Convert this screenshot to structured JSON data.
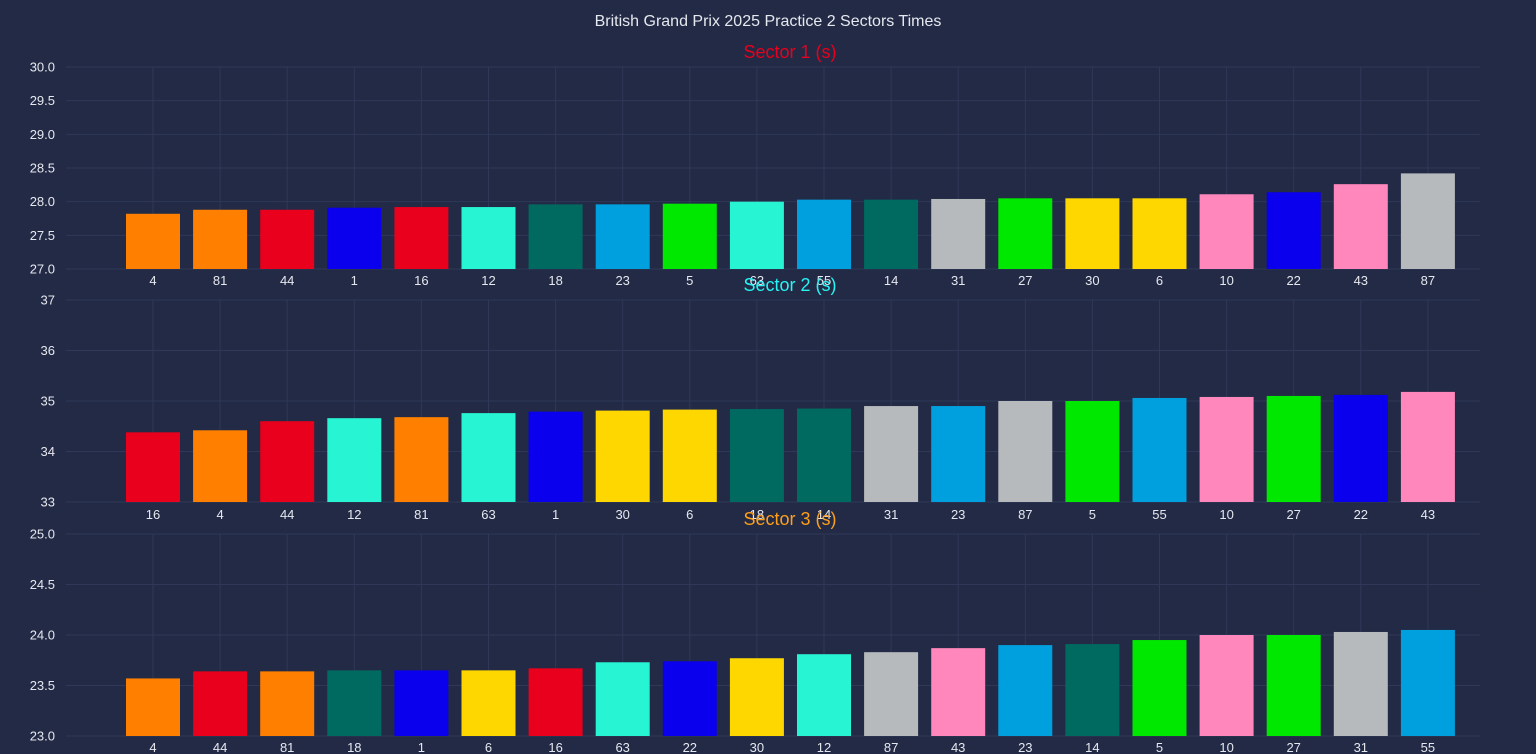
{
  "title": "British Grand Prix 2025 Practice 2 Sectors Times",
  "chart_data": [
    {
      "type": "bar",
      "title": "Sector 1 (s)",
      "title_color": "#e8001c",
      "ylim": [
        27.0,
        30.0
      ],
      "yticks": [
        "27.0",
        "27.5",
        "28.0",
        "28.5",
        "29.0",
        "29.5",
        "30.0"
      ],
      "categories": [
        "4",
        "81",
        "44",
        "1",
        "16",
        "12",
        "18",
        "23",
        "5",
        "63",
        "55",
        "14",
        "31",
        "27",
        "30",
        "6",
        "10",
        "22",
        "43",
        "87"
      ],
      "values": [
        27.82,
        27.88,
        27.88,
        27.91,
        27.92,
        27.92,
        27.96,
        27.96,
        27.97,
        28.0,
        28.03,
        28.03,
        28.04,
        28.05,
        28.05,
        28.05,
        28.11,
        28.14,
        28.26,
        28.42
      ],
      "colors": [
        "#ff8000",
        "#ff8000",
        "#e8001c",
        "#0b00ee",
        "#e8001c",
        "#27f4d2",
        "#006a60",
        "#00a0de",
        "#00e700",
        "#27f4d2",
        "#00a0de",
        "#006a60",
        "#b6babd",
        "#00e700",
        "#ffd700",
        "#ffd700",
        "#ff87bc",
        "#0b00ee",
        "#ff87bc",
        "#b6babd"
      ],
      "grid": true
    },
    {
      "type": "bar",
      "title": "Sector 2 (s)",
      "title_color": "#27f4f4",
      "ylim": [
        33,
        37
      ],
      "yticks": [
        "33",
        "34",
        "35",
        "36",
        "37"
      ],
      "categories": [
        "16",
        "4",
        "44",
        "12",
        "81",
        "63",
        "1",
        "30",
        "6",
        "18",
        "14",
        "31",
        "23",
        "87",
        "5",
        "55",
        "10",
        "27",
        "22",
        "43"
      ],
      "values": [
        34.38,
        34.42,
        34.6,
        34.66,
        34.68,
        34.76,
        34.79,
        34.81,
        34.83,
        34.84,
        34.85,
        34.9,
        34.9,
        35.0,
        35.0,
        35.06,
        35.08,
        35.1,
        35.12,
        35.18
      ],
      "colors": [
        "#e8001c",
        "#ff8000",
        "#e8001c",
        "#27f4d2",
        "#ff8000",
        "#27f4d2",
        "#0b00ee",
        "#ffd700",
        "#ffd700",
        "#006a60",
        "#006a60",
        "#b6babd",
        "#00a0de",
        "#b6babd",
        "#00e700",
        "#00a0de",
        "#ff87bc",
        "#00e700",
        "#0b00ee",
        "#ff87bc"
      ],
      "grid": true
    },
    {
      "type": "bar",
      "title": "Sector 3 (s)",
      "title_color": "#ff9f1a",
      "ylim": [
        23.0,
        25.0
      ],
      "yticks": [
        "23.0",
        "23.5",
        "24.0",
        "24.5",
        "25.0"
      ],
      "categories": [
        "4",
        "44",
        "81",
        "18",
        "1",
        "6",
        "16",
        "63",
        "22",
        "30",
        "12",
        "87",
        "43",
        "23",
        "14",
        "5",
        "10",
        "27",
        "31",
        "55"
      ],
      "values": [
        23.57,
        23.64,
        23.64,
        23.65,
        23.65,
        23.65,
        23.67,
        23.73,
        23.74,
        23.77,
        23.81,
        23.83,
        23.87,
        23.9,
        23.91,
        23.95,
        24.0,
        24.0,
        24.03,
        24.05
      ],
      "colors": [
        "#ff8000",
        "#e8001c",
        "#ff8000",
        "#006a60",
        "#0b00ee",
        "#ffd700",
        "#e8001c",
        "#27f4d2",
        "#0b00ee",
        "#ffd700",
        "#27f4d2",
        "#b6babd",
        "#ff87bc",
        "#00a0de",
        "#006a60",
        "#00e700",
        "#ff87bc",
        "#00e700",
        "#b6babd",
        "#00a0de"
      ],
      "grid": true
    }
  ]
}
